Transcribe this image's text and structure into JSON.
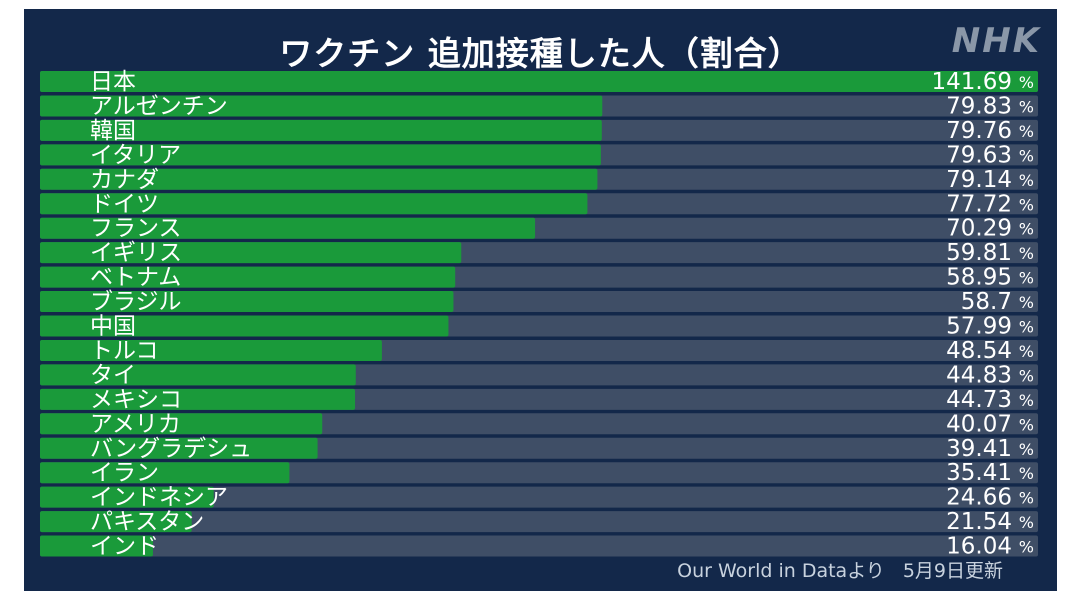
{
  "header": {
    "title": "ワクチン 追加接種した人（割合）",
    "logo": "NHK"
  },
  "footer": {
    "source": "Our World in Dataより",
    "updated": "5月9日更新"
  },
  "colors": {
    "background": "#13284a",
    "bar": "#1a9a3a",
    "track": "#3f4e66"
  },
  "chart_data": {
    "type": "bar",
    "orientation": "horizontal",
    "title": "ワクチン 追加接種した人（割合）",
    "unit": "%",
    "xlim": [
      0,
      141.69
    ],
    "categories": [
      "日本",
      "アルゼンチン",
      "韓国",
      "イタリア",
      "カナダ",
      "ドイツ",
      "フランス",
      "イギリス",
      "ベトナム",
      "ブラジル",
      "中国",
      "トルコ",
      "タイ",
      "メキシコ",
      "アメリカ",
      "バングラデシュ",
      "イラン",
      "インドネシア",
      "パキスタン",
      "インド"
    ],
    "labels": [
      "141.69",
      "79.83",
      "79.76",
      "79.63",
      "79.14",
      "77.72",
      "70.29",
      "59.81",
      "58.95",
      "58.7",
      "57.99",
      "48.54",
      "44.83",
      "44.73",
      "40.07",
      "39.41",
      "35.41",
      "24.66",
      "21.54",
      "16.04"
    ],
    "values": [
      141.69,
      79.83,
      79.76,
      79.63,
      79.14,
      77.72,
      70.29,
      59.81,
      58.95,
      58.7,
      57.99,
      48.54,
      44.83,
      44.73,
      40.07,
      39.41,
      35.41,
      24.66,
      21.54,
      16.04
    ]
  }
}
